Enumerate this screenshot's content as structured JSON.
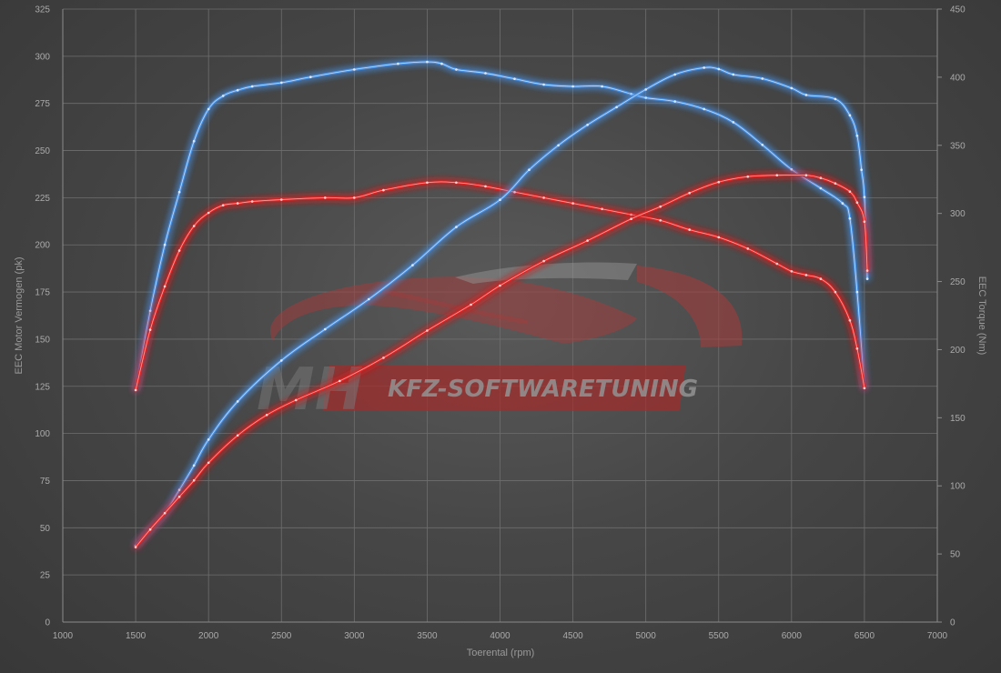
{
  "chart_data": {
    "type": "line",
    "xlabel": "Toerental (rpm)",
    "ylabel_left": "EEC Motor Vermogen (pk)",
    "ylabel_right": "EEC Torque (Nm)",
    "xlim": [
      1000,
      7000
    ],
    "ylim_left": [
      0,
      325
    ],
    "ylim_right": [
      0,
      450
    ],
    "x_ticks": [
      1000,
      1500,
      2000,
      2500,
      3000,
      3500,
      4000,
      4500,
      5000,
      5500,
      6000,
      6500,
      7000
    ],
    "y_left_ticks": [
      0,
      25,
      50,
      75,
      100,
      125,
      150,
      175,
      200,
      225,
      250,
      275,
      300,
      325
    ],
    "y_right_ticks": [
      0,
      50,
      100,
      150,
      200,
      250,
      300,
      350,
      400,
      450
    ],
    "grid": true,
    "series": [
      {
        "axis": "left",
        "color": "#4a90e2",
        "points": [
          [
            1500,
            123
          ],
          [
            1600,
            165
          ],
          [
            1700,
            200
          ],
          [
            1800,
            228
          ],
          [
            1900,
            255
          ],
          [
            2000,
            272
          ],
          [
            2100,
            279
          ],
          [
            2200,
            282
          ],
          [
            2300,
            284
          ],
          [
            2500,
            286
          ],
          [
            2700,
            289
          ],
          [
            3000,
            293
          ],
          [
            3300,
            296
          ],
          [
            3500,
            297
          ],
          [
            3600,
            296
          ],
          [
            3700,
            293
          ],
          [
            3900,
            291
          ],
          [
            4100,
            288
          ],
          [
            4300,
            285
          ],
          [
            4500,
            284
          ],
          [
            4700,
            284
          ],
          [
            4900,
            280
          ],
          [
            5000,
            278
          ],
          [
            5200,
            276
          ],
          [
            5400,
            272
          ],
          [
            5600,
            265
          ],
          [
            5800,
            253
          ],
          [
            6000,
            240
          ],
          [
            6200,
            230
          ],
          [
            6350,
            222
          ],
          [
            6400,
            214
          ],
          [
            6450,
            175
          ],
          [
            6500,
            124
          ]
        ]
      },
      {
        "axis": "left",
        "color": "#e02424",
        "points": [
          [
            1500,
            123
          ],
          [
            1600,
            155
          ],
          [
            1700,
            178
          ],
          [
            1800,
            197
          ],
          [
            1900,
            210
          ],
          [
            2000,
            217
          ],
          [
            2100,
            221
          ],
          [
            2200,
            222
          ],
          [
            2300,
            223
          ],
          [
            2500,
            224
          ],
          [
            2800,
            225
          ],
          [
            3000,
            225
          ],
          [
            3200,
            229
          ],
          [
            3500,
            233
          ],
          [
            3700,
            233
          ],
          [
            3900,
            231
          ],
          [
            4100,
            228
          ],
          [
            4300,
            225
          ],
          [
            4500,
            222
          ],
          [
            4700,
            219
          ],
          [
            4900,
            216
          ],
          [
            5100,
            213
          ],
          [
            5300,
            208
          ],
          [
            5500,
            204
          ],
          [
            5700,
            198
          ],
          [
            5900,
            190
          ],
          [
            6000,
            186
          ],
          [
            6100,
            184
          ],
          [
            6200,
            182
          ],
          [
            6300,
            175
          ],
          [
            6400,
            160
          ],
          [
            6450,
            145
          ],
          [
            6500,
            124
          ]
        ]
      },
      {
        "axis": "right",
        "color": "#4a90e2",
        "points": [
          [
            1500,
            56
          ],
          [
            1600,
            68
          ],
          [
            1700,
            80
          ],
          [
            1800,
            97
          ],
          [
            1900,
            115
          ],
          [
            2000,
            134
          ],
          [
            2200,
            162
          ],
          [
            2500,
            192
          ],
          [
            2800,
            215
          ],
          [
            3100,
            237
          ],
          [
            3400,
            262
          ],
          [
            3700,
            290
          ],
          [
            4000,
            310
          ],
          [
            4200,
            332
          ],
          [
            4400,
            350
          ],
          [
            4600,
            365
          ],
          [
            4800,
            378
          ],
          [
            5000,
            391
          ],
          [
            5200,
            402
          ],
          [
            5400,
            407
          ],
          [
            5500,
            406
          ],
          [
            5600,
            402
          ],
          [
            5800,
            399
          ],
          [
            6000,
            392
          ],
          [
            6100,
            387
          ],
          [
            6300,
            384
          ],
          [
            6400,
            372
          ],
          [
            6450,
            357
          ],
          [
            6480,
            332
          ],
          [
            6500,
            312
          ],
          [
            6520,
            252
          ]
        ]
      },
      {
        "axis": "right",
        "color": "#e02424",
        "points": [
          [
            1500,
            55
          ],
          [
            1600,
            68
          ],
          [
            1700,
            80
          ],
          [
            1800,
            92
          ],
          [
            1900,
            104
          ],
          [
            2000,
            117
          ],
          [
            2200,
            137
          ],
          [
            2400,
            152
          ],
          [
            2600,
            163
          ],
          [
            2900,
            177
          ],
          [
            3200,
            194
          ],
          [
            3500,
            214
          ],
          [
            3800,
            233
          ],
          [
            4000,
            247
          ],
          [
            4300,
            265
          ],
          [
            4600,
            280
          ],
          [
            4900,
            296
          ],
          [
            5100,
            305
          ],
          [
            5300,
            315
          ],
          [
            5500,
            323
          ],
          [
            5700,
            327
          ],
          [
            5900,
            328
          ],
          [
            6100,
            328
          ],
          [
            6200,
            326
          ],
          [
            6300,
            322
          ],
          [
            6400,
            316
          ],
          [
            6450,
            308
          ],
          [
            6500,
            294
          ],
          [
            6520,
            258
          ]
        ]
      }
    ]
  },
  "logo": {
    "brand_left": "MH",
    "brand_right": "KFZ-SOFTWARETUNING"
  }
}
